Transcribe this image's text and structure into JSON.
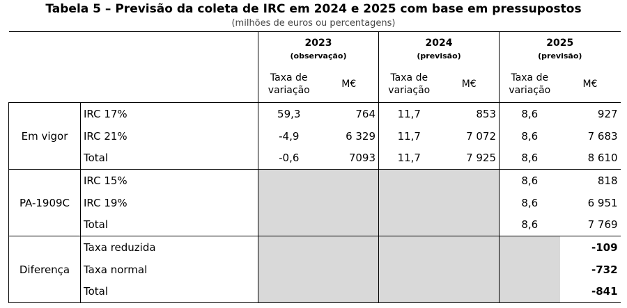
{
  "title": "Tabela 5 – Previsão da coleta de IRC em 2024 e 2025 com base em pressupostos",
  "subtitle": "(milhões de euros ou percentagens)",
  "table": {
    "years": [
      {
        "year": "2023",
        "note": "(observação)",
        "rate_label": "Taxa de variação",
        "value_label": "M€"
      },
      {
        "year": "2024",
        "note": "(previsão)",
        "rate_label": "Taxa de variação",
        "value_label": "M€"
      },
      {
        "year": "2025",
        "note": "(previsão)",
        "rate_label": "Taxa de variação",
        "value_label": "M€"
      }
    ],
    "groups": [
      {
        "label": "Em vigor",
        "bold_values": false,
        "rows": [
          {
            "label": "IRC 17%",
            "cells": [
              "59,3",
              "764",
              "11,7",
              "853",
              "8,6",
              "927"
            ]
          },
          {
            "label": "IRC 21%",
            "cells": [
              "-4,9",
              "6 329",
              "11,7",
              "7 072",
              "8,6",
              "7 683"
            ]
          },
          {
            "label": "Total",
            "cells": [
              "-0,6",
              "7093",
              "11,7",
              "7 925",
              "8,6",
              "8 610"
            ]
          }
        ]
      },
      {
        "label": "PA-1909C",
        "bold_values": false,
        "rows": [
          {
            "label": "IRC 15%",
            "cells": [
              null,
              null,
              null,
              null,
              "8,6",
              "818"
            ]
          },
          {
            "label": "IRC 19%",
            "cells": [
              null,
              null,
              null,
              null,
              "8,6",
              "6 951"
            ]
          },
          {
            "label": "Total",
            "cells": [
              null,
              null,
              null,
              null,
              "8,6",
              "7 769"
            ]
          }
        ]
      },
      {
        "label": "Diferença",
        "bold_values": true,
        "rows": [
          {
            "label": "Taxa reduzida",
            "cells": [
              null,
              null,
              null,
              null,
              null,
              "-109"
            ]
          },
          {
            "label": "Taxa normal",
            "cells": [
              null,
              null,
              null,
              null,
              null,
              "-732"
            ]
          },
          {
            "label": "Total",
            "cells": [
              null,
              null,
              null,
              null,
              null,
              "-841"
            ]
          }
        ]
      }
    ]
  }
}
